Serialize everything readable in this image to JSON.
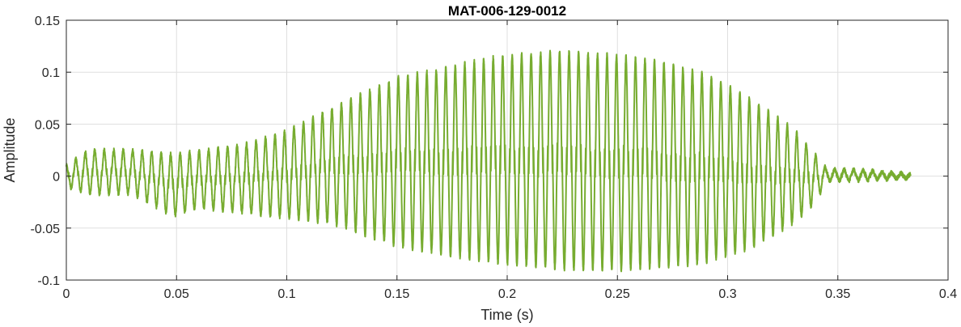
{
  "chart_data": {
    "type": "line",
    "title": "MAT-006-129-0012",
    "xlabel": "Time (s)",
    "ylabel": "Amplitude",
    "xlim": [
      0,
      0.4
    ],
    "ylim": [
      -0.1,
      0.15
    ],
    "xticks": [
      0,
      0.05,
      0.1,
      0.15,
      0.2,
      0.25,
      0.3,
      0.35,
      0.4
    ],
    "xtick_labels": [
      "0",
      "0.05",
      "0.1",
      "0.15",
      "0.2",
      "0.25",
      "0.3",
      "0.35",
      "0.4"
    ],
    "yticks": [
      -0.1,
      -0.05,
      0,
      0.05,
      0.1,
      0.15
    ],
    "ytick_labels": [
      "-0.1",
      "-0.05",
      "0",
      "0.05",
      "0.1",
      "0.15"
    ],
    "grid": true,
    "color": "#77AC30",
    "series": [
      {
        "x_end": 0.383,
        "envelope_time": [
          0,
          0.01,
          0.03,
          0.048,
          0.06,
          0.08,
          0.1,
          0.12,
          0.14,
          0.15,
          0.17,
          0.19,
          0.21,
          0.23,
          0.25,
          0.27,
          0.29,
          0.31,
          0.33,
          0.34,
          0.345,
          0.36,
          0.383
        ],
        "envelope_max": [
          0.01,
          0.025,
          0.025,
          0.021,
          0.024,
          0.03,
          0.043,
          0.065,
          0.085,
          0.095,
          0.103,
          0.113,
          0.118,
          0.12,
          0.116,
          0.11,
          0.098,
          0.075,
          0.045,
          0.02,
          0.007,
          0.006,
          0.002
        ],
        "envelope_min": [
          -0.01,
          -0.017,
          -0.017,
          -0.038,
          -0.03,
          -0.035,
          -0.04,
          -0.045,
          -0.06,
          -0.067,
          -0.075,
          -0.082,
          -0.087,
          -0.09,
          -0.09,
          -0.088,
          -0.083,
          -0.07,
          -0.045,
          -0.025,
          -0.005,
          -0.004,
          -0.002
        ],
        "cycles": 89
      }
    ]
  }
}
